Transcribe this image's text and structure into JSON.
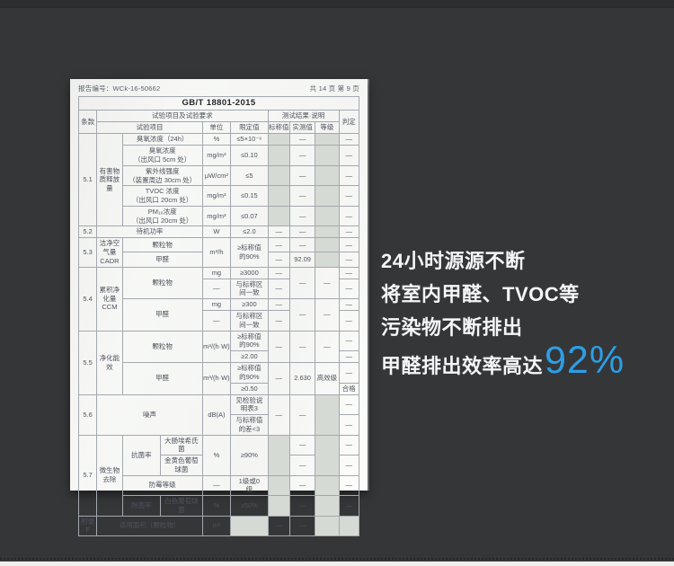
{
  "background": {
    "page_color": "#343638",
    "accent_blue": "#2e9ee4",
    "red_box_color": "#e8666c"
  },
  "document": {
    "report_no": "报告编号：WCk-16-50662",
    "page_info": "共 14 页  第 9 页",
    "standard_title": "GB/T 18801-2015",
    "headers": {
      "clause": "条款",
      "test_group": "试验项目及试验要求",
      "result_group": "测试结果·说明",
      "item": "试验项目",
      "unit": "单位",
      "limit": "限定值",
      "nominal": "标称值",
      "measured": "实测值",
      "grade": "等级",
      "verdict": "判定"
    },
    "rows": [
      [
        {
          "t": "5.1",
          "r": 5
        },
        {
          "t": "有害物\n质释放\n量",
          "r": 5,
          "k": "cat"
        },
        {
          "t": "臭氧浓度（24h）",
          "c": 2
        },
        {
          "t": "%"
        },
        {
          "t": "≤5×10⁻⁶"
        },
        {
          "t": "",
          "k": "sh"
        },
        {
          "t": "—"
        },
        {
          "t": "",
          "k": "sh"
        },
        {
          "t": "—"
        }
      ],
      [
        {
          "t": "臭氧浓度\n（出风口 5cm 处）",
          "c": 2
        },
        {
          "t": "mg/m³"
        },
        {
          "t": "≤0.10"
        },
        {
          "t": "",
          "k": "sh"
        },
        {
          "t": "—"
        },
        {
          "t": "",
          "k": "sh"
        },
        {
          "t": "—"
        }
      ],
      [
        {
          "t": "紫外线强度\n（装置周边 30cm 处）",
          "c": 2
        },
        {
          "t": "μW/cm²"
        },
        {
          "t": "≤5"
        },
        {
          "t": "",
          "k": "sh"
        },
        {
          "t": "—"
        },
        {
          "t": "",
          "k": "sh"
        },
        {
          "t": "—"
        }
      ],
      [
        {
          "t": "TVOC 浓度\n（出风口 20cm 处）",
          "c": 2
        },
        {
          "t": "mg/m³"
        },
        {
          "t": "≤0.15"
        },
        {
          "t": "",
          "k": "sh"
        },
        {
          "t": "—"
        },
        {
          "t": "",
          "k": "sh"
        },
        {
          "t": "—"
        }
      ],
      [
        {
          "t": "PM₁₀浓度\n（出风口 20cm 处）",
          "c": 2
        },
        {
          "t": "mg/m³"
        },
        {
          "t": "≤0.07"
        },
        {
          "t": "",
          "k": "sh"
        },
        {
          "t": "—"
        },
        {
          "t": "",
          "k": "sh"
        },
        {
          "t": "—"
        }
      ],
      [
        {
          "t": "5.2"
        },
        {
          "t": "待机功率",
          "c": 3
        },
        {
          "t": "W"
        },
        {
          "t": "≤2.0"
        },
        {
          "t": "—"
        },
        {
          "t": "—"
        },
        {
          "t": "",
          "k": "sh"
        },
        {
          "t": "—"
        }
      ],
      [
        {
          "t": "5.3",
          "r": 2
        },
        {
          "t": "洁净空\n气量\nCADR",
          "r": 2,
          "k": "cat"
        },
        {
          "t": "颗粒物",
          "c": 2,
          "k": "rbt rbl"
        },
        {
          "t": "m³/h",
          "r": 2,
          "k": "rbt rbb"
        },
        {
          "t": "≥标称值\n的90%",
          "r": 2,
          "k": "rbt rbb"
        },
        {
          "t": "—",
          "k": "rbt"
        },
        {
          "t": "—",
          "k": "rbt"
        },
        {
          "t": "",
          "k": "sh rbt"
        },
        {
          "t": "—",
          "k": "rbt rbr"
        }
      ],
      [
        {
          "t": "甲醛",
          "c": 2,
          "k": "rbb rbl"
        },
        {
          "t": "—",
          "k": "rbb"
        },
        {
          "t": "92.09",
          "k": "rbb"
        },
        {
          "t": "",
          "k": "sh rbb"
        },
        {
          "t": "—",
          "k": "rbb rbr"
        }
      ],
      [
        {
          "t": "5.4",
          "r": 4
        },
        {
          "t": "累积净\n化量\nCCM",
          "r": 4,
          "k": "cat"
        },
        {
          "t": "颗粒物",
          "c": 2,
          "r": 2
        },
        {
          "t": "mg"
        },
        {
          "t": "≥3000"
        },
        {
          "t": "—"
        },
        {
          "t": "—",
          "r": 2
        },
        {
          "t": "—",
          "r": 2
        },
        {
          "t": "—"
        }
      ],
      [
        {
          "t": "—"
        },
        {
          "t": "与标称区\n间一致"
        },
        {
          "t": "—"
        },
        {
          "t": "—"
        }
      ],
      [
        {
          "t": "甲醛",
          "c": 2,
          "r": 2
        },
        {
          "t": "mg"
        },
        {
          "t": "≥300"
        },
        {
          "t": "—"
        },
        {
          "t": "—",
          "r": 2
        },
        {
          "t": "—",
          "r": 2
        },
        {
          "t": "—"
        }
      ],
      [
        {
          "t": "—"
        },
        {
          "t": "与标称区\n间一致"
        },
        {
          "t": "—"
        },
        {
          "t": "—"
        }
      ],
      [
        {
          "t": "5.5",
          "r": 4
        },
        {
          "t": "净化能\n效",
          "r": 4,
          "k": "cat"
        },
        {
          "t": "颗粒物",
          "c": 2,
          "r": 2
        },
        {
          "t": "m³/(h·W)",
          "r": 2
        },
        {
          "t": "≥标称值\n的90%"
        },
        {
          "t": "—",
          "r": 2
        },
        {
          "t": "—",
          "r": 2
        },
        {
          "t": "—",
          "r": 2
        },
        {
          "t": "—"
        }
      ],
      [
        {
          "t": "≥2.00"
        },
        {
          "t": "—"
        }
      ],
      [
        {
          "t": "甲醛",
          "c": 2,
          "r": 2,
          "k": "rbl rbt rbb"
        },
        {
          "t": "m³/(h·W)",
          "r": 2,
          "k": "rbt rbb"
        },
        {
          "t": "≥标称值\n的90%",
          "k": "rbt"
        },
        {
          "t": "—",
          "r": 2,
          "k": "rbt rbb"
        },
        {
          "t": "2.630",
          "r": 2,
          "k": "rbt rbb"
        },
        {
          "t": "高效级",
          "r": 2,
          "k": "rbt rbb"
        },
        {
          "t": "—",
          "k": "rbt rbr"
        }
      ],
      [
        {
          "t": "≥0.50",
          "k": "rbb"
        },
        {
          "t": "合格",
          "k": "rbb rbr"
        }
      ],
      [
        {
          "t": "5.6",
          "r": 2
        },
        {
          "t": "噪声",
          "c": 3,
          "r": 2
        },
        {
          "t": "dB(A)",
          "r": 2
        },
        {
          "t": "见检验说\n明表3"
        },
        {
          "t": "—",
          "r": 2
        },
        {
          "t": "—",
          "r": 2
        },
        {
          "t": "",
          "r": 2,
          "k": "sh"
        },
        {
          "t": "—"
        }
      ],
      [
        {
          "t": "与标称值\n的差<3"
        },
        {
          "t": "—"
        }
      ],
      [
        {
          "t": "5.7",
          "r": 4
        },
        {
          "t": "微生物\n去除",
          "r": 4,
          "k": "cat"
        },
        {
          "t": "抗菌率",
          "r": 2
        },
        {
          "t": "大肠埃希氏\n菌"
        },
        {
          "t": "%",
          "r": 2
        },
        {
          "t": "≥90%",
          "r": 2
        },
        {
          "t": "",
          "r": 2,
          "k": "sh"
        },
        {
          "t": "—"
        },
        {
          "t": "",
          "r": 2,
          "k": "sh"
        },
        {
          "t": "—"
        }
      ],
      [
        {
          "t": "金黄色葡萄\n球菌"
        },
        {
          "t": "—"
        },
        {
          "t": "—"
        }
      ],
      [
        {
          "t": "防霉等级",
          "c": 2
        },
        {
          "t": "—"
        },
        {
          "t": "1级或0\n级"
        },
        {
          "t": "",
          "k": "sh"
        },
        {
          "t": "—"
        },
        {
          "t": "",
          "k": "sh"
        },
        {
          "t": "—"
        }
      ],
      [
        {
          "t": "除菌率"
        },
        {
          "t": "白色葡萄球\n菌"
        },
        {
          "t": "%"
        },
        {
          "t": "≥50%"
        },
        {
          "t": "",
          "k": "sh"
        },
        {
          "t": "—"
        },
        {
          "t": "",
          "k": "sh"
        },
        {
          "t": "—"
        }
      ],
      [
        {
          "t": "附录F"
        },
        {
          "t": "适用面积（颗粒物）",
          "c": 3
        },
        {
          "t": "m²"
        },
        {
          "t": "",
          "k": "sh"
        },
        {
          "t": "—"
        },
        {
          "t": "—"
        },
        {
          "t": "",
          "k": "sh"
        },
        {
          "t": "",
          "k": "sh"
        }
      ]
    ]
  },
  "caption": {
    "line1": "24小时源源不断",
    "line2": "将室内甲醛、TVOC等",
    "line3": "污染物不断排出",
    "line4_prefix": "甲醛排出效率高达",
    "line4_highlight": "92%"
  }
}
